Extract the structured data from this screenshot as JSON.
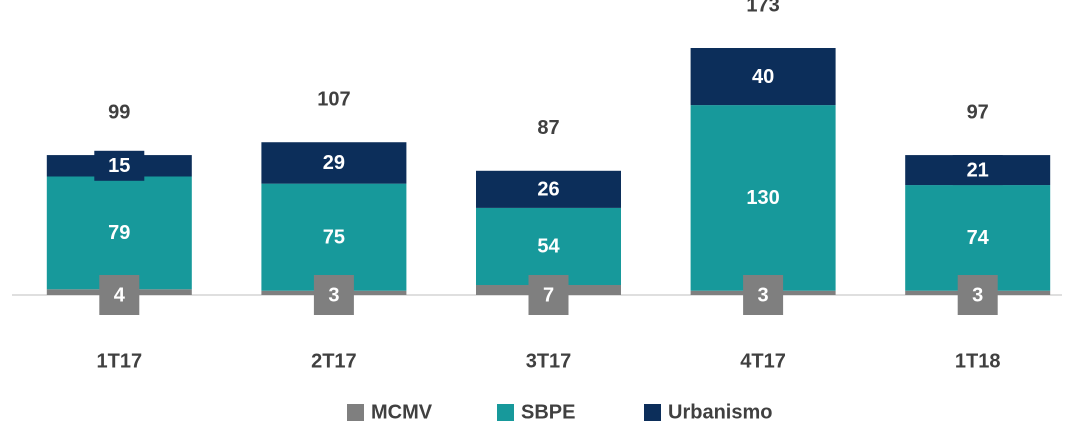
{
  "chart_data": {
    "type": "stacked_bar",
    "categories": [
      "1T17",
      "2T17",
      "3T17",
      "4T17",
      "1T18"
    ],
    "series": [
      {
        "name": "MCMV",
        "color": "#7f7f7f",
        "values": [
          4,
          3,
          7,
          3,
          3
        ]
      },
      {
        "name": "SBPE",
        "color": "#17999b",
        "values": [
          79,
          75,
          54,
          130,
          74
        ]
      },
      {
        "name": "Urbanismo",
        "color": "#0c2e5a",
        "values": [
          15,
          29,
          26,
          40,
          21
        ]
      }
    ],
    "totals": [
      99,
      107,
      87,
      173,
      97
    ]
  }
}
